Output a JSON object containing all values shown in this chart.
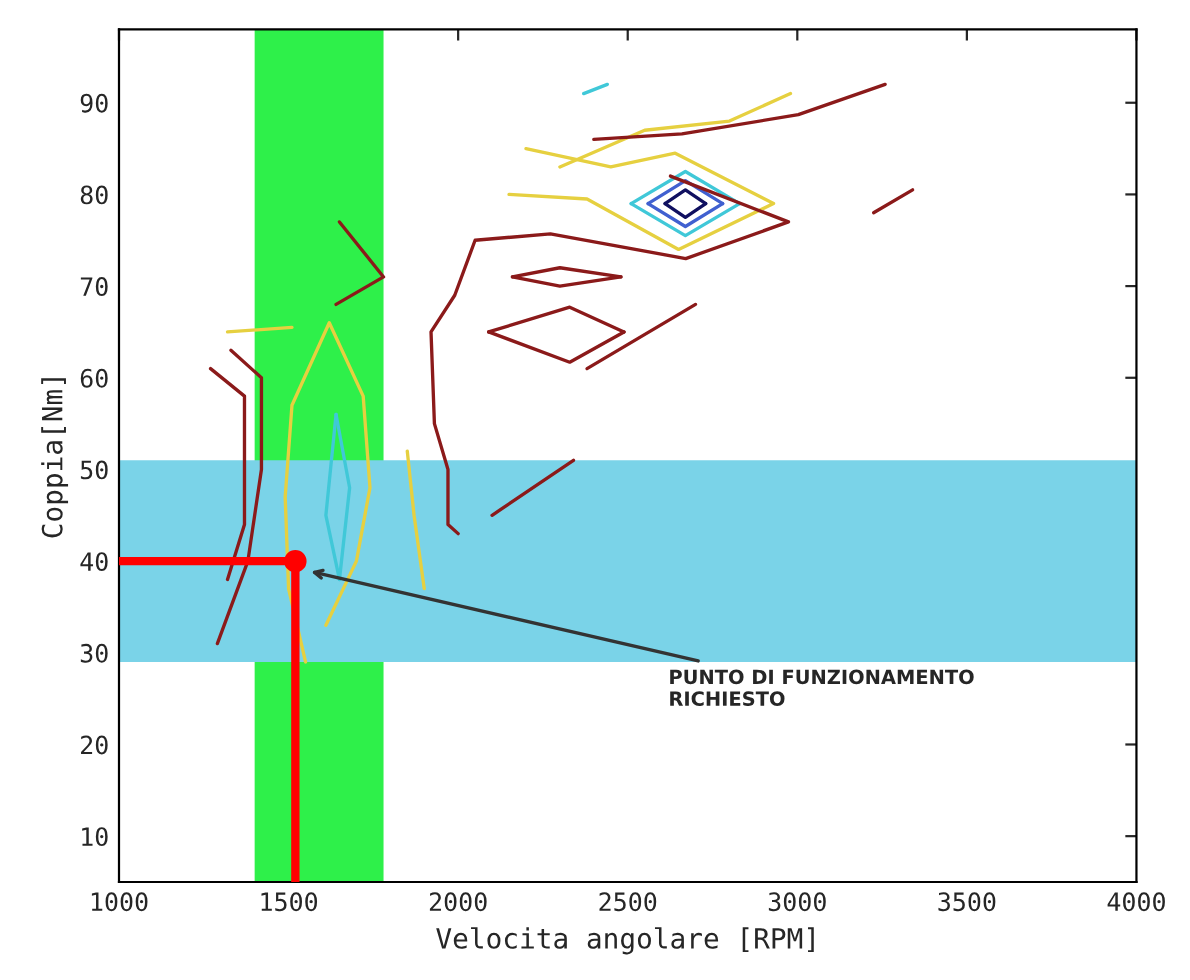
{
  "chart_data": {
    "type": "line",
    "xlabel": "Velocita angolare [RPM]",
    "ylabel": "Coppia[Nm]",
    "xlim": [
      1000,
      4000
    ],
    "ylim": [
      5,
      98
    ],
    "xticks": [
      1000,
      1500,
      2000,
      2500,
      3000,
      3500,
      4000
    ],
    "yticks": [
      10,
      20,
      30,
      40,
      50,
      60,
      70,
      80,
      90
    ],
    "grid": false,
    "legend": false,
    "bands": [
      {
        "axis": "x",
        "from": 1400,
        "to": 1780,
        "color": "#2ef04a"
      },
      {
        "axis": "y",
        "from": 29,
        "to": 51,
        "color": "#7ad3e8"
      }
    ],
    "series": [
      {
        "color": "#101060",
        "x": [
          2610,
          2670,
          2730
        ],
        "values": [
          79,
          80.5,
          79
        ]
      },
      {
        "color": "#101060",
        "x": [
          2610,
          2670,
          2730
        ],
        "values": [
          79,
          77.5,
          79
        ]
      },
      {
        "color": "#4060d0",
        "x": [
          2560,
          2670,
          2780
        ],
        "values": [
          79,
          81.5,
          79
        ]
      },
      {
        "color": "#4060d0",
        "x": [
          2560,
          2670,
          2780
        ],
        "values": [
          79,
          76.5,
          79
        ]
      },
      {
        "color": "#40c8d8",
        "x": [
          2510,
          2670,
          2830
        ],
        "values": [
          79,
          82.5,
          79
        ]
      },
      {
        "color": "#40c8d8",
        "x": [
          2510,
          2670,
          2830
        ],
        "values": [
          79,
          75.5,
          79
        ]
      },
      {
        "color": "#40c8d8",
        "x": [
          2370,
          2440
        ],
        "values": [
          91,
          92
        ]
      },
      {
        "color": "#e6d040",
        "x": [
          2200,
          2450,
          2640,
          2930,
          2650,
          2380,
          2150
        ],
        "values": [
          85,
          83,
          84.5,
          79,
          74,
          79.5,
          80
        ]
      },
      {
        "color": "#e6d040",
        "x": [
          2300,
          2550,
          2800,
          2980
        ],
        "values": [
          83,
          87,
          88,
          91
        ]
      },
      {
        "color": "#8b1a1a",
        "x": [
          2626,
          2974,
          2671,
          2272,
          2050,
          1990,
          1920,
          1930,
          1970,
          1970,
          2000
        ],
        "values": [
          82,
          77,
          73,
          75.7,
          75,
          69,
          65,
          55,
          50,
          44,
          43
        ]
      },
      {
        "color": "#8b1a1a",
        "x": [
          2090,
          2329,
          2489
        ],
        "values": [
          65,
          67.7,
          65
        ]
      },
      {
        "color": "#8b1a1a",
        "x": [
          2090,
          2329,
          2489
        ],
        "values": [
          65,
          61.7,
          65
        ]
      },
      {
        "color": "#8b1a1a",
        "x": [
          2160,
          2300,
          2480
        ],
        "values": [
          71,
          72,
          71
        ]
      },
      {
        "color": "#8b1a1a",
        "x": [
          2160,
          2300,
          2480
        ],
        "values": [
          71,
          70,
          71
        ]
      },
      {
        "color": "#8b1a1a",
        "x": [
          2100,
          2340
        ],
        "values": [
          45,
          51
        ]
      },
      {
        "color": "#8b1a1a",
        "x": [
          2380,
          2700
        ],
        "values": [
          61,
          68
        ]
      },
      {
        "color": "#8b1a1a",
        "x": [
          3225,
          3340
        ],
        "values": [
          78,
          80.5
        ]
      },
      {
        "color": "#8b1a1a",
        "x": [
          2400,
          2660,
          3003,
          3259
        ],
        "values": [
          86,
          86.6,
          88.7,
          92
        ]
      },
      {
        "color": "#8b1a1a",
        "x": [
          1650,
          1780,
          1640
        ],
        "values": [
          77,
          71,
          68
        ]
      },
      {
        "color": "#8b1a1a",
        "x": [
          1270,
          1370,
          1370,
          1320
        ],
        "values": [
          61,
          58,
          44,
          38
        ]
      },
      {
        "color": "#8b1a1a",
        "x": [
          1290,
          1380,
          1420,
          1420,
          1330
        ],
        "values": [
          31,
          40,
          50,
          60,
          63
        ]
      },
      {
        "color": "#e6d040",
        "x": [
          1320,
          1510
        ],
        "values": [
          65,
          65.5
        ]
      },
      {
        "color": "#e6d040",
        "x": [
          1550,
          1500,
          1490,
          1510,
          1620,
          1720,
          1740,
          1700,
          1610
        ],
        "values": [
          29,
          37,
          47,
          57,
          66,
          58,
          48,
          40,
          33
        ]
      },
      {
        "color": "#e6d040",
        "x": [
          1850,
          1870,
          1900
        ],
        "values": [
          52,
          45,
          37
        ]
      },
      {
        "color": "#40c8d8",
        "x": [
          1640,
          1610,
          1650
        ],
        "values": [
          56,
          45,
          38
        ]
      },
      {
        "color": "#40c8d8",
        "x": [
          1640,
          1680,
          1650
        ],
        "values": [
          56,
          48,
          38
        ]
      },
      {
        "color": "#ff0000",
        "x": [
          1000,
          1520
        ],
        "values": [
          40,
          40
        ]
      },
      {
        "color": "#ff0000",
        "x": [
          1520,
          1520
        ],
        "values": [
          5,
          40
        ]
      },
      {
        "type": "scatter",
        "color": "#ff0000",
        "x": [
          1520
        ],
        "values": [
          40
        ]
      }
    ],
    "annotations": [
      {
        "text": "PUNTO DI FUNZIONAMENTO\nRICHIESTO",
        "x": 1550,
        "y": 39
      }
    ]
  }
}
